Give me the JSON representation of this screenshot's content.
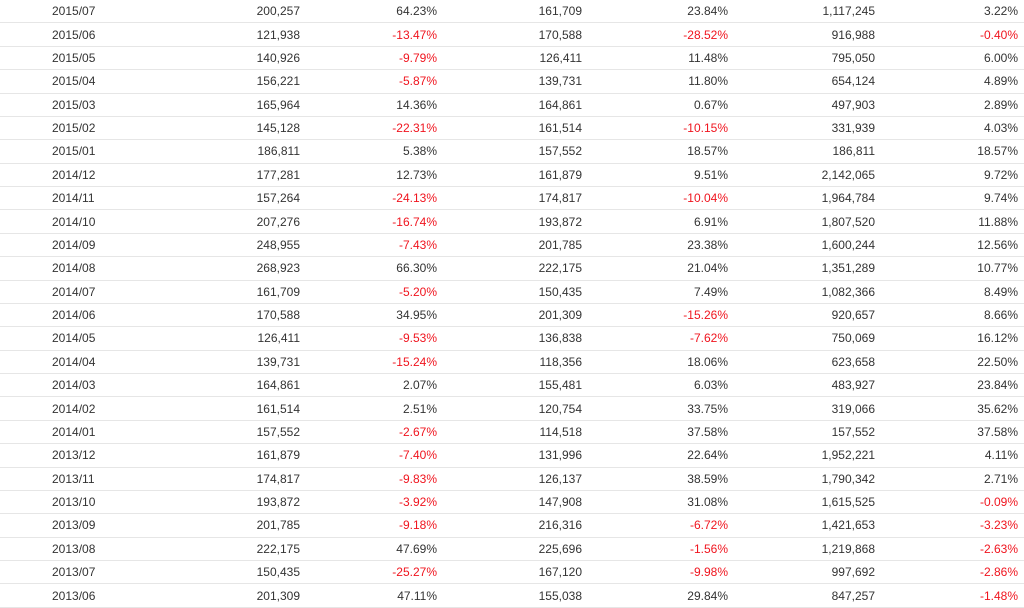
{
  "table": {
    "rows": [
      [
        "2015/07",
        "200,257",
        "64.23%",
        "161,709",
        "23.84%",
        "1,117,245",
        "3.22%"
      ],
      [
        "2015/06",
        "121,938",
        "-13.47%",
        "170,588",
        "-28.52%",
        "916,988",
        "-0.40%"
      ],
      [
        "2015/05",
        "140,926",
        "-9.79%",
        "126,411",
        "11.48%",
        "795,050",
        "6.00%"
      ],
      [
        "2015/04",
        "156,221",
        "-5.87%",
        "139,731",
        "11.80%",
        "654,124",
        "4.89%"
      ],
      [
        "2015/03",
        "165,964",
        "14.36%",
        "164,861",
        "0.67%",
        "497,903",
        "2.89%"
      ],
      [
        "2015/02",
        "145,128",
        "-22.31%",
        "161,514",
        "-10.15%",
        "331,939",
        "4.03%"
      ],
      [
        "2015/01",
        "186,811",
        "5.38%",
        "157,552",
        "18.57%",
        "186,811",
        "18.57%"
      ],
      [
        "2014/12",
        "177,281",
        "12.73%",
        "161,879",
        "9.51%",
        "2,142,065",
        "9.72%"
      ],
      [
        "2014/11",
        "157,264",
        "-24.13%",
        "174,817",
        "-10.04%",
        "1,964,784",
        "9.74%"
      ],
      [
        "2014/10",
        "207,276",
        "-16.74%",
        "193,872",
        "6.91%",
        "1,807,520",
        "11.88%"
      ],
      [
        "2014/09",
        "248,955",
        "-7.43%",
        "201,785",
        "23.38%",
        "1,600,244",
        "12.56%"
      ],
      [
        "2014/08",
        "268,923",
        "66.30%",
        "222,175",
        "21.04%",
        "1,351,289",
        "10.77%"
      ],
      [
        "2014/07",
        "161,709",
        "-5.20%",
        "150,435",
        "7.49%",
        "1,082,366",
        "8.49%"
      ],
      [
        "2014/06",
        "170,588",
        "34.95%",
        "201,309",
        "-15.26%",
        "920,657",
        "8.66%"
      ],
      [
        "2014/05",
        "126,411",
        "-9.53%",
        "136,838",
        "-7.62%",
        "750,069",
        "16.12%"
      ],
      [
        "2014/04",
        "139,731",
        "-15.24%",
        "118,356",
        "18.06%",
        "623,658",
        "22.50%"
      ],
      [
        "2014/03",
        "164,861",
        "2.07%",
        "155,481",
        "6.03%",
        "483,927",
        "23.84%"
      ],
      [
        "2014/02",
        "161,514",
        "2.51%",
        "120,754",
        "33.75%",
        "319,066",
        "35.62%"
      ],
      [
        "2014/01",
        "157,552",
        "-2.67%",
        "114,518",
        "37.58%",
        "157,552",
        "37.58%"
      ],
      [
        "2013/12",
        "161,879",
        "-7.40%",
        "131,996",
        "22.64%",
        "1,952,221",
        "4.11%"
      ],
      [
        "2013/11",
        "174,817",
        "-9.83%",
        "126,137",
        "38.59%",
        "1,790,342",
        "2.71%"
      ],
      [
        "2013/10",
        "193,872",
        "-3.92%",
        "147,908",
        "31.08%",
        "1,615,525",
        "-0.09%"
      ],
      [
        "2013/09",
        "201,785",
        "-9.18%",
        "216,316",
        "-6.72%",
        "1,421,653",
        "-3.23%"
      ],
      [
        "2013/08",
        "222,175",
        "47.69%",
        "225,696",
        "-1.56%",
        "1,219,868",
        "-2.63%"
      ],
      [
        "2013/07",
        "150,435",
        "-25.27%",
        "167,120",
        "-9.98%",
        "997,692",
        "-2.86%"
      ],
      [
        "2013/06",
        "201,309",
        "47.11%",
        "155,038",
        "29.84%",
        "847,257",
        "-1.48%"
      ]
    ]
  }
}
